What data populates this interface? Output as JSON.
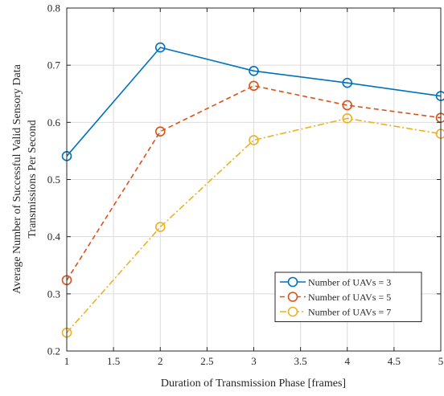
{
  "chart_data": {
    "type": "line",
    "title": "",
    "xlabel": "Duration of Transmission Phase [frames]",
    "ylabel": [
      "Average Number of Successful Valid Sensory Data",
      "Transmissions Per Second"
    ],
    "x": [
      1,
      2,
      3,
      4,
      5
    ],
    "xlim": [
      1,
      5
    ],
    "ylim": [
      0.2,
      0.8
    ],
    "xticks": [
      "1",
      "1.5",
      "2",
      "2.5",
      "3",
      "3.5",
      "4",
      "4.5",
      "5"
    ],
    "yticks": [
      "0.2",
      "0.3",
      "0.4",
      "0.5",
      "0.6",
      "0.7",
      "0.8"
    ],
    "grid": true,
    "legend_position": "bottom-right",
    "series": [
      {
        "name": "Number of UAVs = 3",
        "values": [
          0.541,
          0.731,
          0.69,
          0.669,
          0.646
        ],
        "color": "#0072BD",
        "dash": "solid",
        "marker": "circle"
      },
      {
        "name": "Number of UAVs = 5",
        "values": [
          0.324,
          0.584,
          0.664,
          0.63,
          0.608
        ],
        "color": "#D95319",
        "dash": "dashed",
        "marker": "circle"
      },
      {
        "name": "Number of UAVs = 7",
        "values": [
          0.232,
          0.417,
          0.569,
          0.607,
          0.58
        ],
        "color": "#EDB120",
        "dash": "dashdot",
        "marker": "circle"
      }
    ]
  }
}
